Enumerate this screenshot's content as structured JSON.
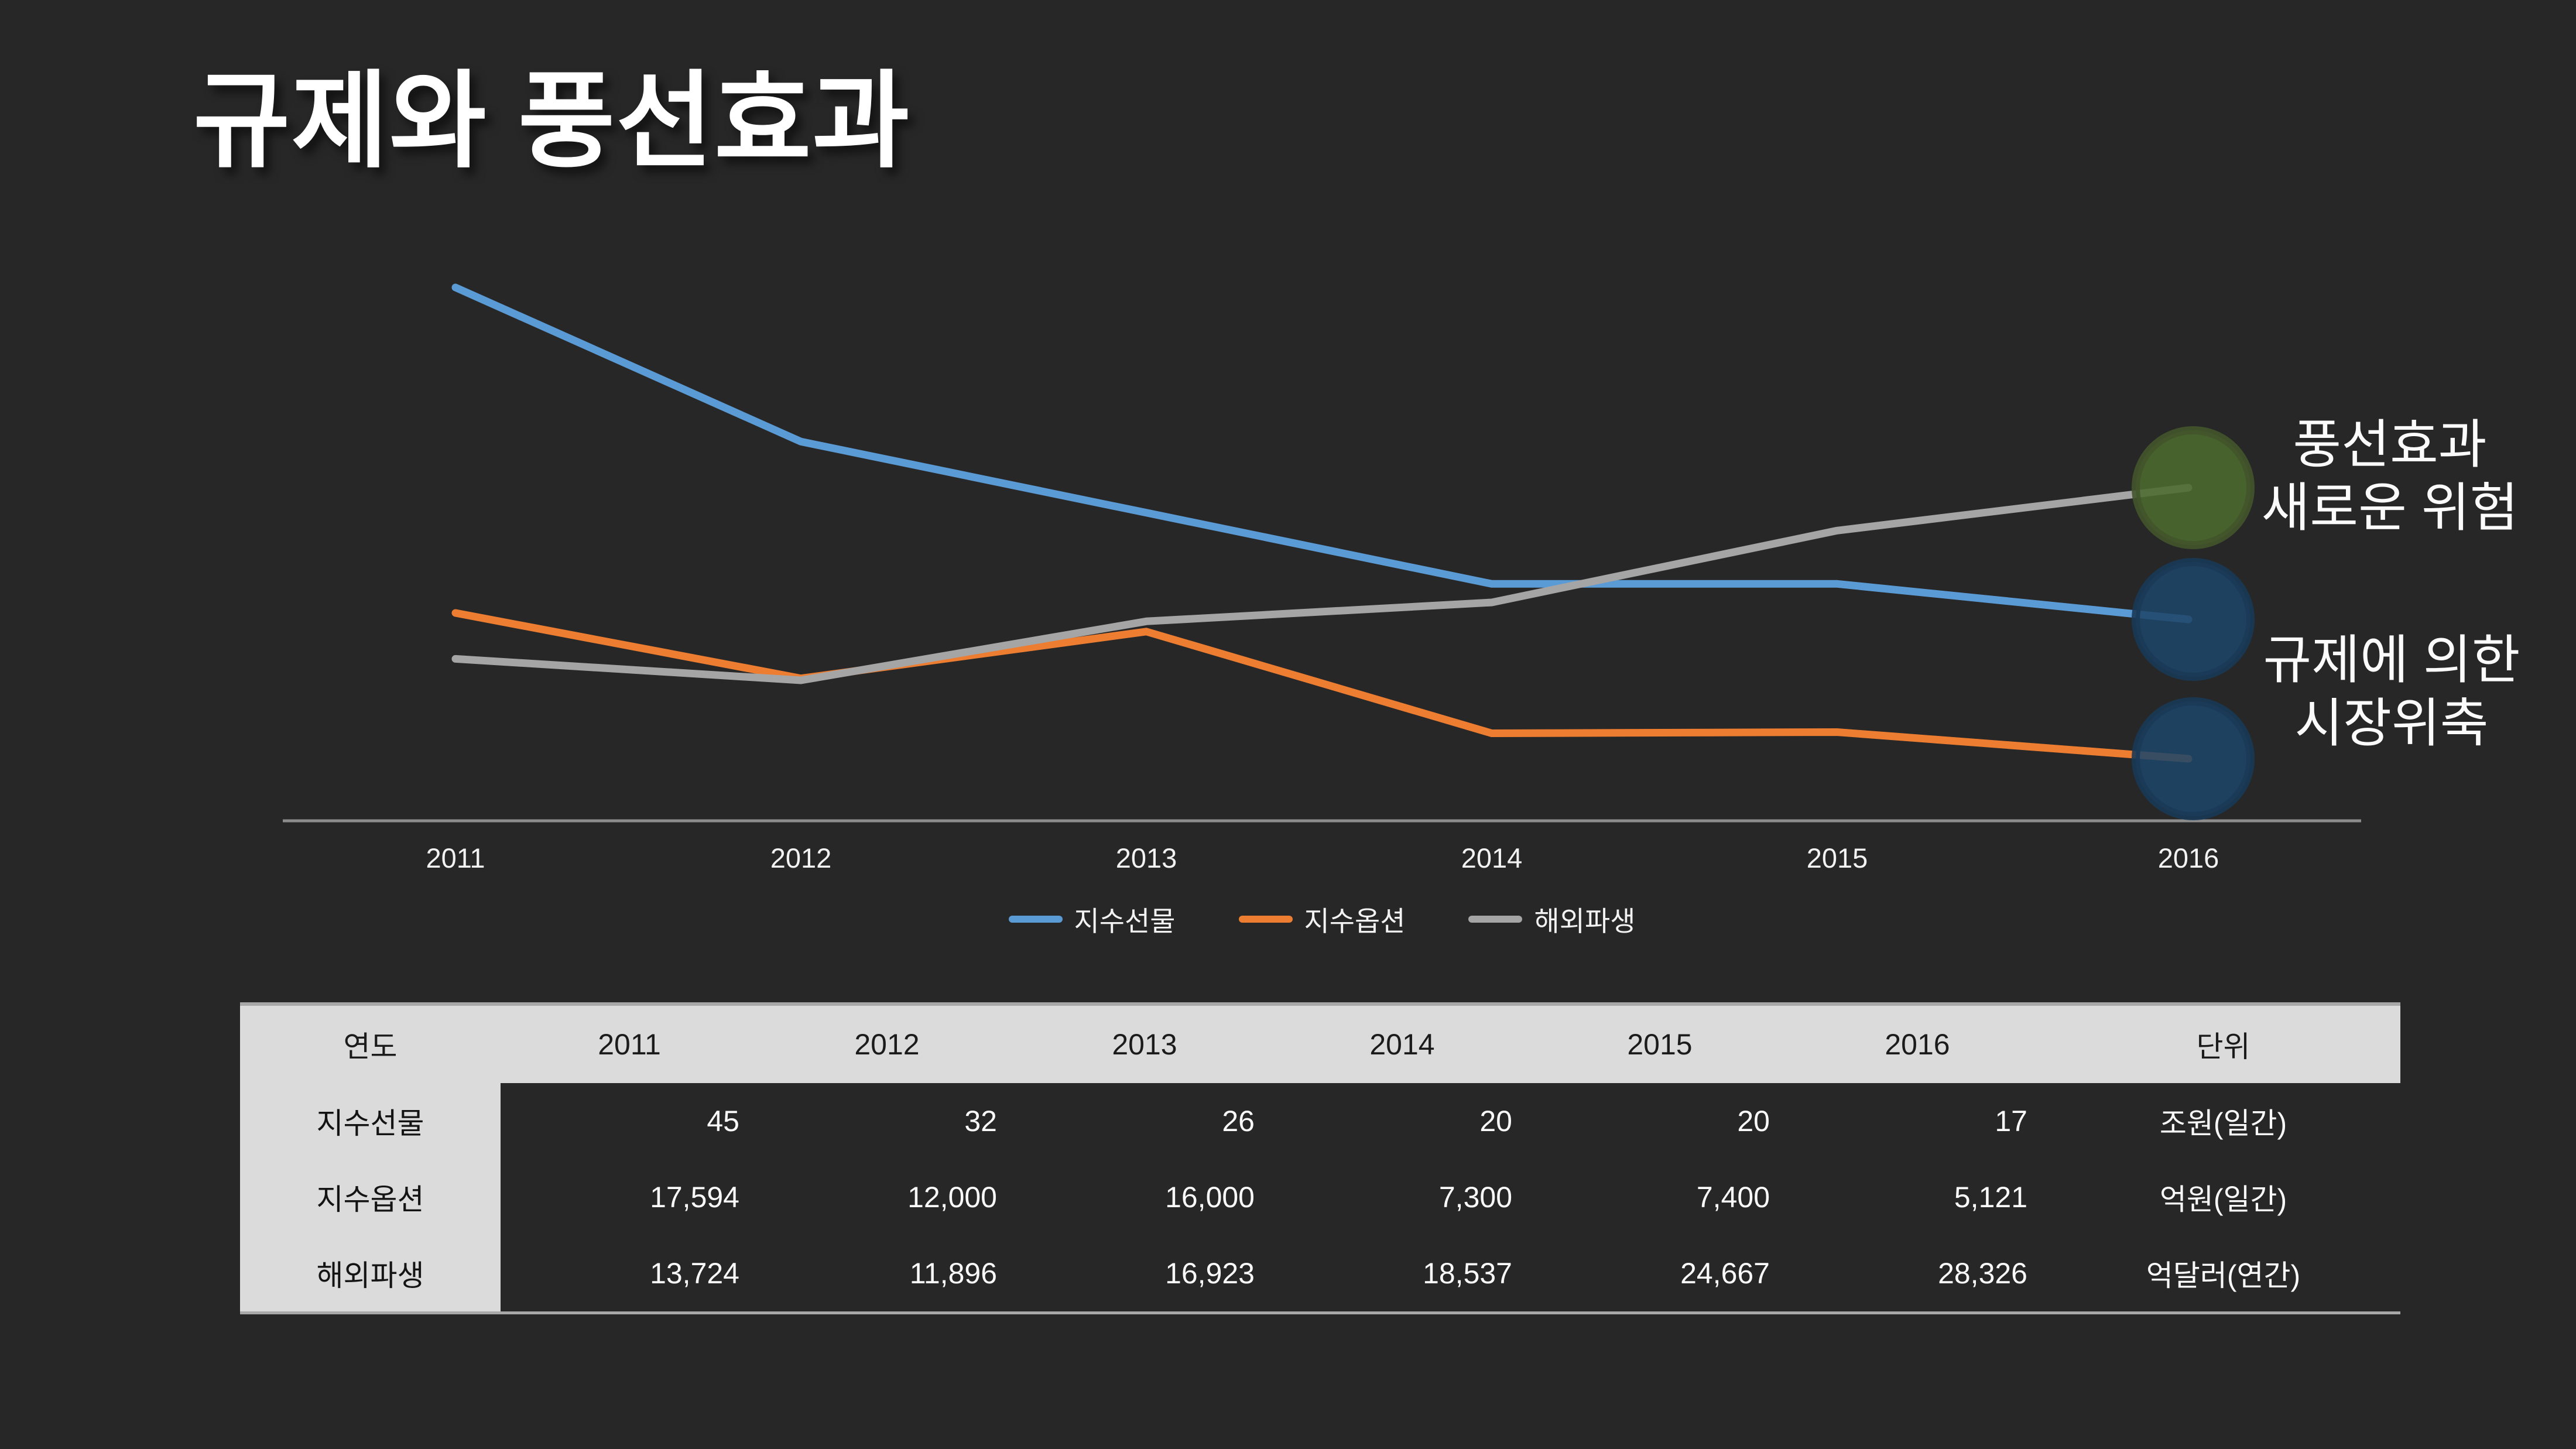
{
  "slide": {
    "title": "규제와 풍선효과",
    "background_color": "#272727"
  },
  "chart_data": {
    "type": "line",
    "categories": [
      "2011",
      "2012",
      "2013",
      "2014",
      "2015",
      "2016"
    ],
    "series": [
      {
        "name": "지수선물",
        "color": "#5B9BD5",
        "values": [
          45,
          32,
          26,
          20,
          20,
          17
        ],
        "unit": "조원(일간)"
      },
      {
        "name": "지수옵션",
        "color": "#ED7D31",
        "values": [
          17594,
          12000,
          16000,
          7300,
          7400,
          5121
        ],
        "unit": "억원(일간)"
      },
      {
        "name": "해외파생",
        "color": "#A5A5A5",
        "values": [
          13724,
          11896,
          16923,
          18537,
          24667,
          28326
        ],
        "unit": "억달러(연간)"
      }
    ],
    "title": "",
    "xlabel": "",
    "ylabel": "",
    "grid": false,
    "y_axis_visible": false,
    "legend_position": "bottom",
    "axis_color": "#8C8C8C"
  },
  "annotations": [
    {
      "text_lines": [
        "풍선효과",
        "새로운 위험"
      ],
      "circles": [
        {
          "series": "해외파생",
          "fill": "#4C6B2E",
          "border": "#42552B"
        }
      ]
    },
    {
      "text_lines": [
        "규제에 의한",
        "시장위축"
      ],
      "circles": [
        {
          "series": "지수선물",
          "fill": "#1F4569",
          "border": "#1A3A58"
        },
        {
          "series": "지수옵션",
          "fill": "#1F4569",
          "border": "#1A3A58"
        }
      ]
    }
  ],
  "table": {
    "header": [
      "연도",
      "2011",
      "2012",
      "2013",
      "2014",
      "2015",
      "2016",
      "단위"
    ],
    "rows": [
      {
        "label": "지수선물",
        "values": [
          "45",
          "32",
          "26",
          "20",
          "20",
          "17"
        ],
        "unit": "조원(일간)"
      },
      {
        "label": "지수옵션",
        "values": [
          "17,594",
          "12,000",
          "16,000",
          "7,300",
          "7,400",
          "5,121"
        ],
        "unit": "억원(일간)"
      },
      {
        "label": "해외파생",
        "values": [
          "13,724",
          "11,896",
          "16,923",
          "18,537",
          "24,667",
          "28,326"
        ],
        "unit": "억달러(연간)"
      }
    ]
  }
}
